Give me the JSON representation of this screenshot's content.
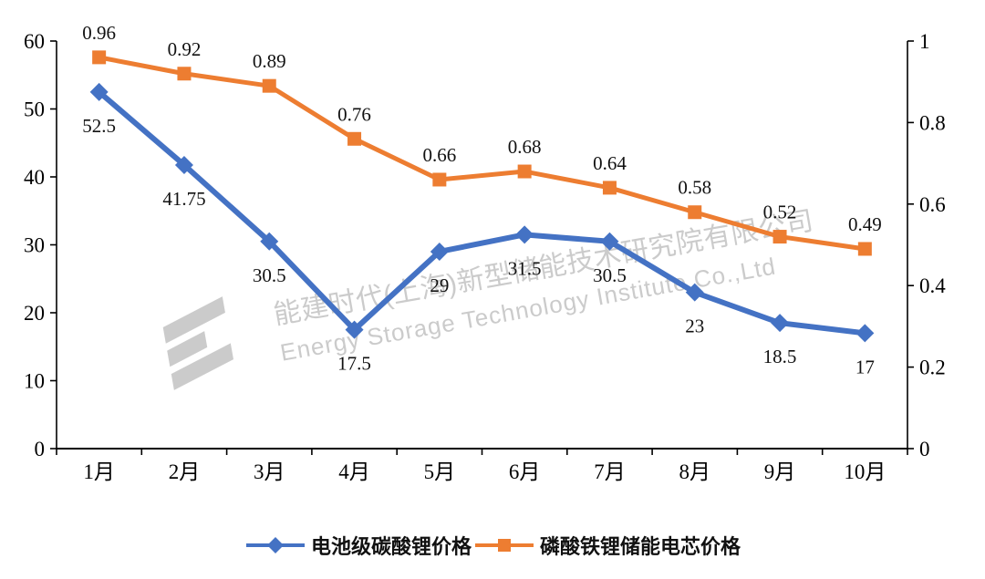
{
  "chart_data": {
    "type": "line",
    "title": "",
    "categories": [
      "1月",
      "2月",
      "3月",
      "4月",
      "5月",
      "6月",
      "7月",
      "8月",
      "9月",
      "10月"
    ],
    "series": [
      {
        "name": "电池级碳酸锂价格",
        "axis": "left",
        "color": "#4472c4",
        "marker": "diamond",
        "label_position": "below",
        "values": [
          52.5,
          41.75,
          30.5,
          17.5,
          29,
          31.5,
          30.5,
          23,
          18.5,
          17
        ],
        "labels": [
          "52.5",
          "41.75",
          "30.5",
          "17.5",
          "29",
          "31.5",
          "30.5",
          "23",
          "18.5",
          "17"
        ]
      },
      {
        "name": "磷酸铁锂储能电芯价格",
        "axis": "right",
        "color": "#ed7d31",
        "marker": "square",
        "label_position": "above",
        "values": [
          0.96,
          0.92,
          0.89,
          0.76,
          0.66,
          0.68,
          0.64,
          0.58,
          0.52,
          0.49
        ],
        "labels": [
          "0.96",
          "0.92",
          "0.89",
          "0.76",
          "0.66",
          "0.68",
          "0.64",
          "0.58",
          "0.52",
          "0.49"
        ]
      }
    ],
    "left_axis": {
      "min": 0,
      "max": 60,
      "step": 10,
      "ticks": [
        "0",
        "10",
        "20",
        "30",
        "40",
        "50",
        "60"
      ]
    },
    "right_axis": {
      "min": 0,
      "max": 1,
      "step": 0.2,
      "ticks": [
        "0",
        "0.2",
        "0.4",
        "0.6",
        "0.8",
        "1"
      ]
    },
    "grid": false,
    "legend_position": "bottom"
  },
  "watermark": {
    "company_cn": "能建时代(上海)新型储能技术研究院有限公司",
    "company_en": "Energy Storage Technology Institute Co.,Ltd",
    "color": "#c6c6c6"
  },
  "colors": {
    "axis": "#000000",
    "background": "#ffffff",
    "label_text": "#111111"
  }
}
